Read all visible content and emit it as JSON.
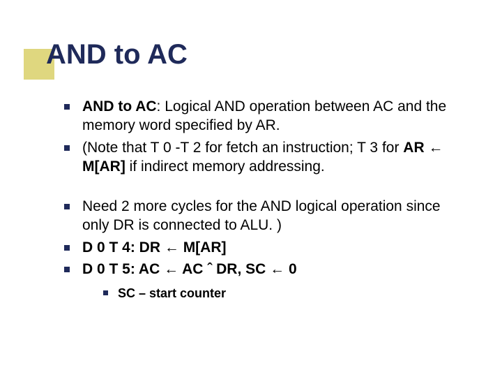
{
  "slide": {
    "title": "AND to AC",
    "accent_color": "#dfd77f",
    "title_color": "#1f2a5a",
    "bullet_color": "#1f2a5a",
    "text_color": "#000000",
    "body_fontsize": 21,
    "sub_fontsize": 18,
    "bullets": [
      {
        "bold_lead": "AND to AC",
        "rest": ": Logical AND operation between AC and the memory word specified by AR."
      },
      {
        "text": "(Note that T 0 -T 2 for fetch an instruction; T 3 for ",
        "tail_bold": "AR ← M[AR]",
        "tail_rest": " if indirect memory addressing."
      },
      {
        "gap": true,
        "text": "Need 2 more cycles for the AND logical operation since only DR is connected to ALU. )"
      },
      {
        "all_bold": "D 0 T 4: DR ← M[AR]"
      },
      {
        "all_bold": "D 0 T 5: AC ← AC ˆ DR, SC ← 0"
      }
    ],
    "sub_bullet": "SC – start counter"
  }
}
